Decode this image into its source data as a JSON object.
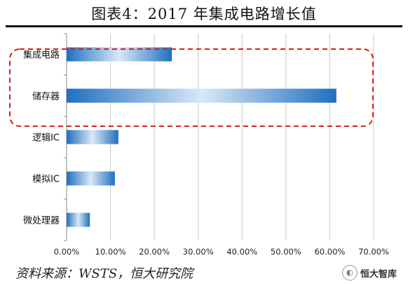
{
  "title": "图表4：2017 年集成电路增长值",
  "source": "资料来源：WSTS，恒大研究院",
  "watermark": "恒大智库",
  "chart_data": {
    "type": "bar",
    "orientation": "horizontal",
    "categories": [
      "集成电路",
      "储存器",
      "逻辑IC",
      "模拟IC",
      "微处理器"
    ],
    "values": [
      0.24,
      0.615,
      0.118,
      0.11,
      0.053
    ],
    "xlim": [
      0,
      0.7
    ],
    "xticks": [
      "0.00%",
      "10.00%",
      "20.00%",
      "30.00%",
      "40.00%",
      "50.00%",
      "60.00%",
      "70.00%"
    ],
    "grid": true,
    "highlight": {
      "categories": [
        "集成电路",
        "储存器"
      ],
      "style": "red dashed rounded box"
    },
    "colors": {
      "bar": "#1f6fc0",
      "bar_light": "#d9e8f7",
      "grid": "#c8c8c8",
      "highlight": "#d81e1e"
    }
  }
}
